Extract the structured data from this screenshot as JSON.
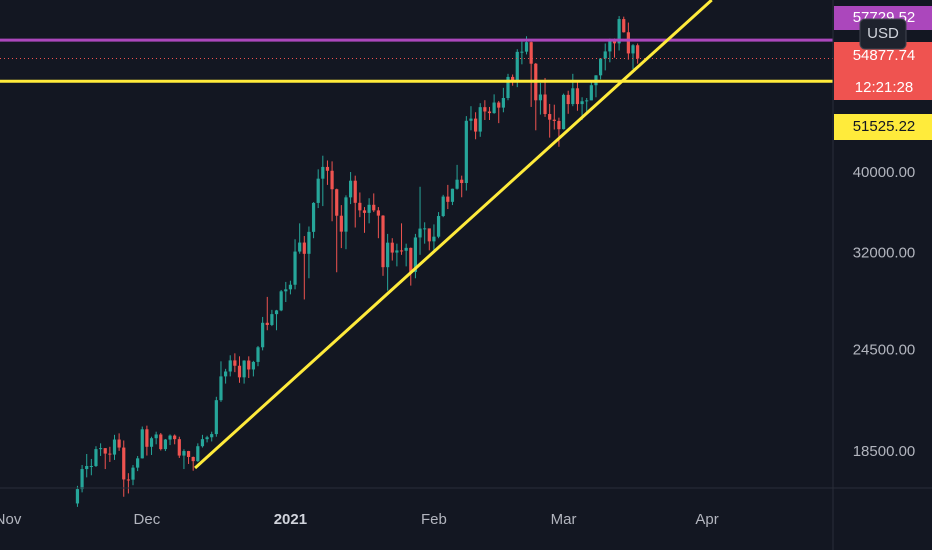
{
  "chart_data": {
    "type": "candlestick",
    "currency": "USD",
    "x": [
      15,
      16,
      17,
      18,
      19,
      20,
      21,
      22,
      23,
      24,
      25,
      26,
      27,
      28,
      29,
      30,
      31,
      32,
      33,
      34,
      35,
      36,
      37,
      38,
      39,
      40,
      41,
      42,
      43,
      44,
      45,
      46,
      47,
      48,
      49,
      50,
      51,
      52,
      53,
      54,
      55,
      56,
      57,
      58,
      59,
      60,
      61,
      62,
      63,
      64,
      65,
      66,
      67,
      68,
      69,
      70,
      71,
      72,
      73,
      74,
      75,
      76,
      77,
      78,
      79,
      80,
      81,
      82,
      83,
      84,
      85,
      86,
      87,
      88,
      89,
      90,
      91,
      92,
      93,
      94,
      95,
      96,
      97,
      98,
      99,
      100,
      101,
      102,
      103,
      104,
      105,
      106,
      107,
      108,
      109,
      110,
      111,
      112,
      113,
      114,
      115,
      116,
      117,
      118,
      119,
      120,
      121,
      122,
      123,
      124,
      125,
      126,
      127,
      128,
      129,
      130,
      131,
      132,
      133,
      134,
      135,
      136
    ],
    "open": [
      16050,
      16700,
      17650,
      17800,
      17800,
      18650,
      18700,
      18420,
      18370,
      19150,
      18730,
      17150,
      17140,
      17720,
      18180,
      19700,
      18770,
      19220,
      19420,
      18650,
      19150,
      19360,
      19170,
      18320,
      18550,
      18250,
      18040,
      18800,
      19170,
      19270,
      19440,
      21350,
      22800,
      23110,
      23830,
      23480,
      22740,
      23820,
      23240,
      23730,
      24710,
      26440,
      26280,
      27080,
      27360,
      28840,
      29000,
      29370,
      32190,
      33000,
      31990,
      33990,
      36820,
      39370,
      40670,
      40240,
      38240,
      35540,
      34010,
      37390,
      39150,
      36830,
      36070,
      35820,
      36630,
      36070,
      35550,
      30830,
      32990,
      32100,
      32290,
      32260,
      32520,
      30430,
      33470,
      34300,
      34320,
      33110,
      33540,
      35510,
      37470,
      36930,
      38290,
      39260,
      38900,
      46200,
      46480,
      44840,
      47970,
      47400,
      47190,
      48590,
      47910,
      49200,
      52150,
      51680,
      55890,
      55920,
      57410,
      54090,
      48890,
      49680,
      47070,
      46340,
      46180,
      45140,
      49630,
      48380,
      50540,
      48380,
      48760,
      48880,
      50970,
      52380,
      54880,
      55960,
      57770,
      57220,
      61190,
      59000,
      55650,
      56920
    ],
    "high": [
      16850,
      17850,
      18400,
      18150,
      18800,
      18950,
      18700,
      18770,
      19400,
      19480,
      19100,
      17450,
      17850,
      18300,
      19850,
      19900,
      19300,
      19570,
      19500,
      19180,
      19420,
      19420,
      19300,
      18640,
      18560,
      18270,
      18950,
      19400,
      19350,
      19570,
      21550,
      23770,
      23280,
      24170,
      24300,
      24100,
      23840,
      24100,
      23800,
      24800,
      26870,
      28400,
      27400,
      27400,
      28950,
      29600,
      29700,
      33300,
      34800,
      33600,
      34500,
      36900,
      40400,
      41950,
      41400,
      41300,
      38300,
      36600,
      37600,
      40100,
      39700,
      37900,
      36400,
      37300,
      37800,
      36400,
      35600,
      33800,
      33400,
      32900,
      34800,
      32900,
      32550,
      33800,
      38500,
      34900,
      34300,
      34700,
      35900,
      37650,
      38700,
      38300,
      40900,
      39700,
      46800,
      48100,
      47300,
      48500,
      48900,
      48000,
      49700,
      48800,
      50600,
      52600,
      52500,
      56300,
      57500,
      58350,
      57500,
      54200,
      51300,
      52000,
      48400,
      48300,
      46600,
      49800,
      50200,
      52600,
      51700,
      49300,
      49200,
      51400,
      52400,
      54900,
      57200,
      58000,
      58000,
      61700,
      61600,
      60600,
      57100,
      57200
    ],
    "low": [
      15900,
      16550,
      17250,
      17350,
      17750,
      18300,
      17650,
      18000,
      18100,
      18560,
      16350,
      16500,
      16880,
      17550,
      18170,
      18320,
      18350,
      18900,
      18580,
      18550,
      18860,
      18900,
      18200,
      17650,
      17900,
      17570,
      18000,
      18730,
      19000,
      19050,
      19300,
      21250,
      22350,
      22800,
      23070,
      22400,
      22350,
      22700,
      22800,
      23450,
      24500,
      25900,
      26200,
      25900,
      27300,
      28000,
      28600,
      29000,
      32000,
      28200,
      29900,
      33400,
      36300,
      36500,
      38700,
      35000,
      30400,
      32500,
      32400,
      36700,
      34400,
      35400,
      33900,
      34800,
      35900,
      33400,
      30100,
      28900,
      31400,
      30900,
      31900,
      30900,
      29300,
      29900,
      31900,
      32900,
      32300,
      32300,
      33400,
      35400,
      36200,
      36600,
      38200,
      37400,
      38100,
      45000,
      43900,
      44200,
      46300,
      46300,
      47100,
      45900,
      47300,
      48900,
      50900,
      50700,
      54000,
      55500,
      48000,
      45000,
      47000,
      46700,
      44100,
      45100,
      43000,
      45100,
      47100,
      48100,
      47500,
      46300,
      47100,
      48900,
      49300,
      51800,
      53100,
      54300,
      55000,
      56100,
      58950,
      54700,
      53300,
      54100
    ],
    "close": [
      16700,
      17650,
      17800,
      17800,
      18650,
      18700,
      18420,
      18370,
      19150,
      18730,
      17150,
      17140,
      17720,
      18180,
      19700,
      18770,
      19220,
      19420,
      18650,
      19150,
      19360,
      19170,
      18320,
      18550,
      18250,
      18040,
      18800,
      19170,
      19270,
      19440,
      21350,
      22800,
      23110,
      23830,
      23480,
      22740,
      23820,
      23240,
      23730,
      24710,
      26440,
      26280,
      27080,
      27360,
      28840,
      29000,
      29370,
      32190,
      33000,
      31990,
      33990,
      36820,
      39370,
      40670,
      40240,
      38240,
      35540,
      34010,
      37390,
      39150,
      36830,
      36070,
      35820,
      36630,
      36070,
      35550,
      30830,
      32990,
      32100,
      32290,
      32260,
      32520,
      30430,
      33470,
      34300,
      34320,
      33110,
      33540,
      35510,
      37470,
      36930,
      38290,
      39260,
      38900,
      46200,
      46480,
      44840,
      47970,
      47400,
      47190,
      48590,
      47910,
      49200,
      52150,
      51680,
      55890,
      55920,
      57410,
      54090,
      48890,
      49680,
      47070,
      46340,
      46180,
      45140,
      49630,
      48380,
      50540,
      48380,
      48760,
      48880,
      50970,
      52380,
      54880,
      55960,
      57770,
      57220,
      61190,
      59000,
      55650,
      56920,
      54877.74
    ],
    "up_color": "#26a69a",
    "down_color": "#ef5350",
    "xlim": [
      -1.73,
      178.2
    ],
    "xticks": [
      {
        "value": 0,
        "label": "Nov"
      },
      {
        "value": 30,
        "label": "Dec"
      },
      {
        "value": 61,
        "label": "2021"
      },
      {
        "value": 92,
        "label": "Feb"
      },
      {
        "value": 120,
        "label": "Mar"
      },
      {
        "value": 151,
        "label": "Apr"
      }
    ],
    "ylim": [
      16750,
      64500
    ],
    "log_scale": true,
    "yticks": [
      {
        "value": 18500,
        "label": "18500.00"
      },
      {
        "value": 24500,
        "label": "24500.00"
      },
      {
        "value": 32000,
        "label": "32000.00"
      },
      {
        "value": 40000,
        "label": "40000.00"
      }
    ],
    "grid": true,
    "hlines": [
      {
        "value": 57729.52,
        "color": "#ab47bc"
      },
      {
        "value": 51525.22,
        "color": "#ffeb3b"
      }
    ],
    "last_price": {
      "value": 54877.74,
      "countdown": "12:21:28",
      "color": "#ef5350"
    },
    "trendline": {
      "x": [
        40.4,
        152
      ],
      "y": [
        17700,
        64500
      ],
      "color": "#ffeb3b"
    }
  }
}
